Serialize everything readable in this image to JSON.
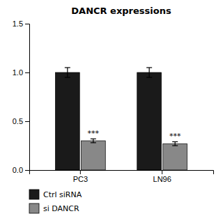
{
  "chart_data": {
    "type": "bar",
    "title": "DANCR expressions",
    "categories": [
      "PC3",
      "LN96"
    ],
    "series": [
      {
        "name": "Ctrl siRNA",
        "color": "#1a1a1a",
        "values": [
          1.0,
          1.0
        ],
        "errors": [
          0.05,
          0.05
        ]
      },
      {
        "name": "si DANCR",
        "color": "#888888",
        "values": [
          0.3,
          0.27
        ],
        "errors": [
          0.02,
          0.02
        ],
        "annotations": [
          "***",
          "***"
        ]
      }
    ],
    "ylim": [
      0,
      1.5
    ],
    "yticks": [
      {
        "value": 0.0,
        "label": "0.0"
      },
      0.5,
      {
        "value": 1.0,
        "label": "1.0"
      },
      1.5
    ],
    "grid": false,
    "legend": "bottom"
  }
}
